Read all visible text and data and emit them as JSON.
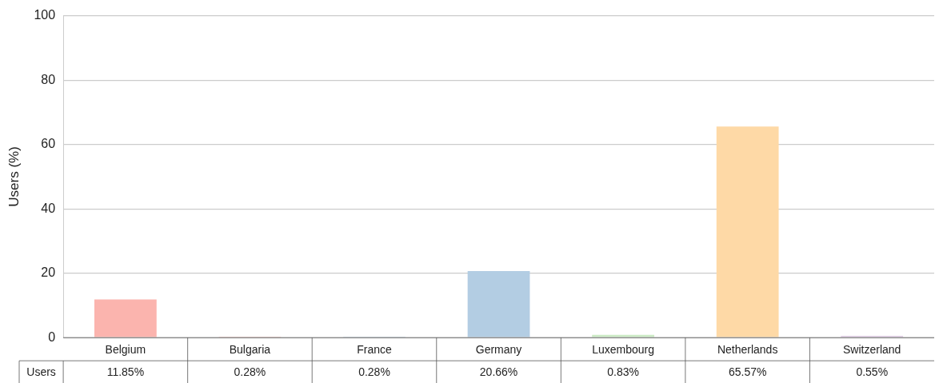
{
  "chart_data": {
    "type": "bar",
    "ylabel": "Users (%)",
    "categories": [
      "Belgium",
      "Bulgaria",
      "France",
      "Germany",
      "Luxembourg",
      "Netherlands",
      "Switzerland"
    ],
    "series": [
      {
        "name": "Users",
        "colors": [
          "#fbb4ae",
          "#fbc9c4",
          "#c6d9ea",
          "#b3cde3",
          "#ccebc5",
          "#fed9a6",
          "#decbe4"
        ],
        "values": [
          11.85,
          0.28,
          0.28,
          20.66,
          0.83,
          65.57,
          0.55
        ],
        "value_labels": [
          "11.85%",
          "0.28%",
          "0.28%",
          "20.66%",
          "0.83%",
          "65.57%",
          "0.55%"
        ]
      }
    ],
    "ylim": [
      0,
      100
    ],
    "yticks": [
      0,
      20,
      40,
      60,
      80,
      100
    ],
    "grid": "y",
    "legend": false
  }
}
